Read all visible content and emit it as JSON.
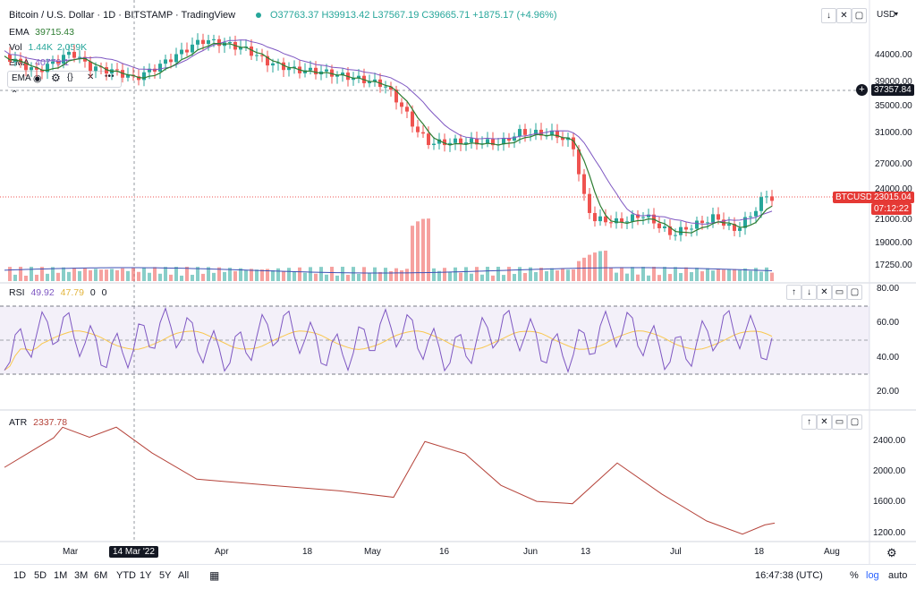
{
  "header": {
    "symbol_title": "Bitcoin / U.S. Dollar · 1D · BITSTAMP · TradingView",
    "ohlc": "O37763.37 H39913.42 L37567.19 C39665.71 +1875.17 (+4.96%)",
    "currency": "USD"
  },
  "legend": {
    "ema1_label": "EMA",
    "ema1_value": "39715.43",
    "vol_label": "Vol",
    "vol_value1": "1.44K",
    "vol_value2": "2.059K",
    "ema2_label": "EMA",
    "ema2_value": "40779.1",
    "pill_label": "EMA"
  },
  "price_axis": {
    "ticks": [
      "44000.00",
      "39000.00",
      "35000.00",
      "31000.00",
      "27000.00",
      "24000.00",
      "21000.00",
      "19000.00",
      "17250.00"
    ],
    "crosshair_price": "37357.84",
    "symbol_tag": "BTCUSD",
    "last_price": "23015.04",
    "countdown": "07:12:22"
  },
  "rsi": {
    "label": "RSI",
    "value1": "49.92",
    "value2": "47.79",
    "z1": "0",
    "z2": "0",
    "ticks": [
      "80.00",
      "60.00",
      "40.00",
      "20.00"
    ]
  },
  "atr": {
    "label": "ATR",
    "value": "2337.78",
    "ticks": [
      "2400.00",
      "2000.00",
      "1600.00",
      "1200.00"
    ]
  },
  "time_axis": {
    "labels": [
      "Mar",
      "Apr",
      "18",
      "May",
      "16",
      "Jun",
      "13",
      "Jul",
      "18",
      "Aug"
    ],
    "crosshair_date": "14 Mar '22"
  },
  "bottom_toolbar": {
    "ranges": [
      "1D",
      "5D",
      "1M",
      "3M",
      "6M",
      "YTD",
      "1Y",
      "5Y",
      "All"
    ],
    "clock": "16:47:38 (UTC)",
    "pct": "%",
    "log": "log",
    "auto": "auto"
  },
  "colors": {
    "up": "#26a69a",
    "down": "#ef5350",
    "ema_fast": "#2e7d32",
    "ema_slow": "#7e57c2",
    "rsi_line": "#7e57c2",
    "rsi_ma": "#f9c74f",
    "atr_line": "#b5433a",
    "accent": "#2962ff",
    "last_price_tag": "#e53935"
  }
}
